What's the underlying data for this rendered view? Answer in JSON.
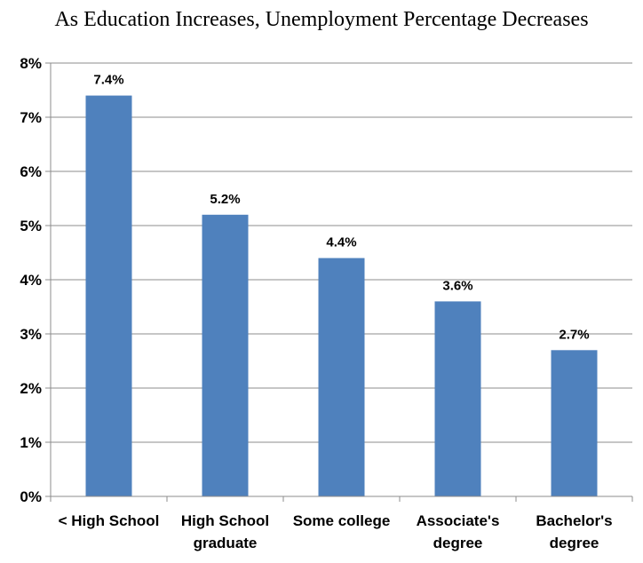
{
  "chart_data": {
    "type": "bar",
    "title": "As Education Increases, Unemployment Percentage Decreases",
    "categories": [
      [
        "< High School"
      ],
      [
        "High School",
        "graduate"
      ],
      [
        "Some college"
      ],
      [
        "Associate's",
        "degree"
      ],
      [
        "Bachelor's",
        "degree"
      ]
    ],
    "values": [
      7.4,
      5.2,
      4.4,
      3.6,
      2.7
    ],
    "data_labels": [
      "7.4%",
      "5.2%",
      "4.4%",
      "3.6%",
      "2.7%"
    ],
    "y_ticks": [
      "0%",
      "1%",
      "2%",
      "3%",
      "4%",
      "5%",
      "6%",
      "7%",
      "8%"
    ],
    "ylim": [
      0,
      8
    ],
    "grid": true,
    "legend": "none",
    "bar_color": "#4f81bd"
  }
}
